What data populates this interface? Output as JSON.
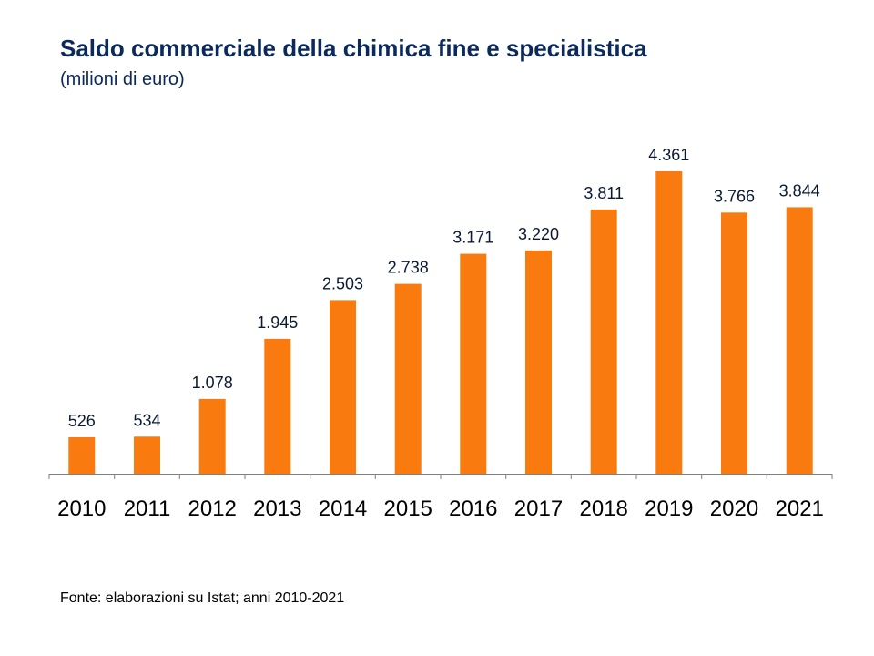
{
  "header": {
    "title": "Saldo commerciale della chimica fine e specialistica",
    "subtitle": "(milioni di euro)"
  },
  "footnote": "Fonte: elaborazioni su Istat; anni 2010-2021",
  "colors": {
    "bar": "#f97b0f",
    "axis": "#808080",
    "title": "#0b2a5b",
    "label": "#0b1a33",
    "tick_label": "#000000"
  },
  "chart_data": {
    "type": "bar",
    "title": "Saldo commerciale della chimica fine e specialistica",
    "subtitle": "(milioni di euro)",
    "categories": [
      "2010",
      "2011",
      "2012",
      "2013",
      "2014",
      "2015",
      "2016",
      "2017",
      "2018",
      "2019",
      "2020",
      "2021"
    ],
    "values": [
      526,
      534,
      1078,
      1945,
      2503,
      2738,
      3171,
      3220,
      3811,
      4361,
      3766,
      3844
    ],
    "data_labels": [
      "526",
      "534",
      "1.078",
      "1.945",
      "2.503",
      "2.738",
      "3.171",
      "3.220",
      "3.811",
      "4.361",
      "3.766",
      "3.844"
    ],
    "xlabel": "",
    "ylabel": "",
    "ylim": [
      0,
      4361
    ],
    "grid": false,
    "legend": "none"
  }
}
